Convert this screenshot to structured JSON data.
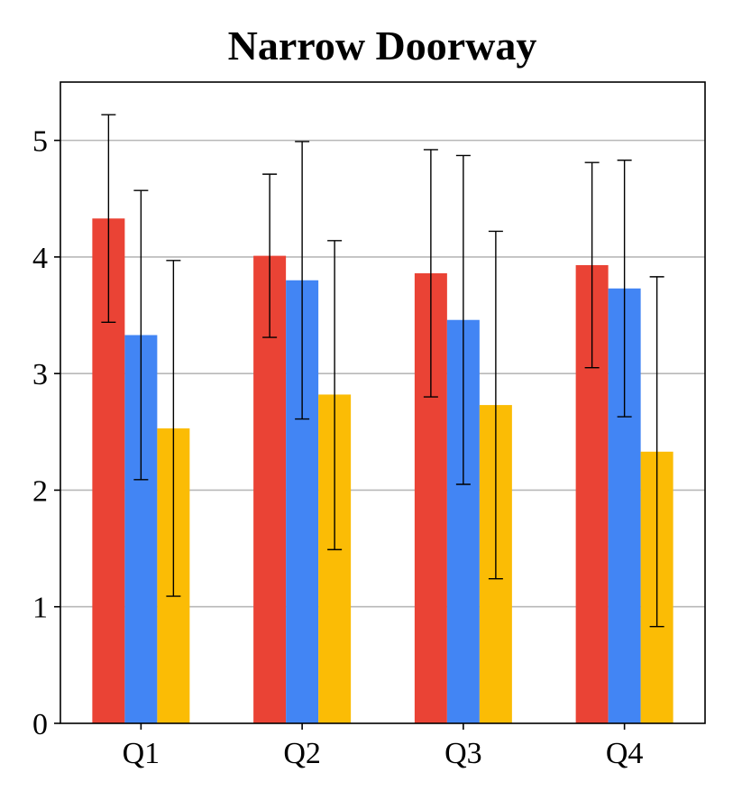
{
  "chart_data": {
    "type": "bar",
    "title": "Narrow Doorway",
    "xlabel": "",
    "ylabel": "",
    "categories": [
      "Q1",
      "Q2",
      "Q3",
      "Q4"
    ],
    "ylim": [
      0,
      5.5
    ],
    "yticks": [
      "0",
      "1",
      "2",
      "3",
      "4",
      "5"
    ],
    "grid": "horizontal",
    "legend": "none",
    "series": [
      {
        "color": "#EA4335",
        "values": [
          4.33,
          4.01,
          3.86,
          3.93
        ],
        "err_low": [
          3.44,
          3.31,
          2.8,
          3.05
        ],
        "err_high": [
          5.22,
          4.71,
          4.92,
          4.81
        ]
      },
      {
        "color": "#4285F4",
        "values": [
          3.33,
          3.8,
          3.46,
          3.73
        ],
        "err_low": [
          2.09,
          2.61,
          2.05,
          2.63
        ],
        "err_high": [
          4.57,
          4.99,
          4.87,
          4.83
        ]
      },
      {
        "color": "#FBBC05",
        "values": [
          2.53,
          2.82,
          2.73,
          2.33
        ],
        "err_low": [
          1.09,
          1.49,
          1.24,
          0.83
        ],
        "err_high": [
          3.97,
          4.14,
          4.22,
          3.83
        ]
      }
    ]
  }
}
